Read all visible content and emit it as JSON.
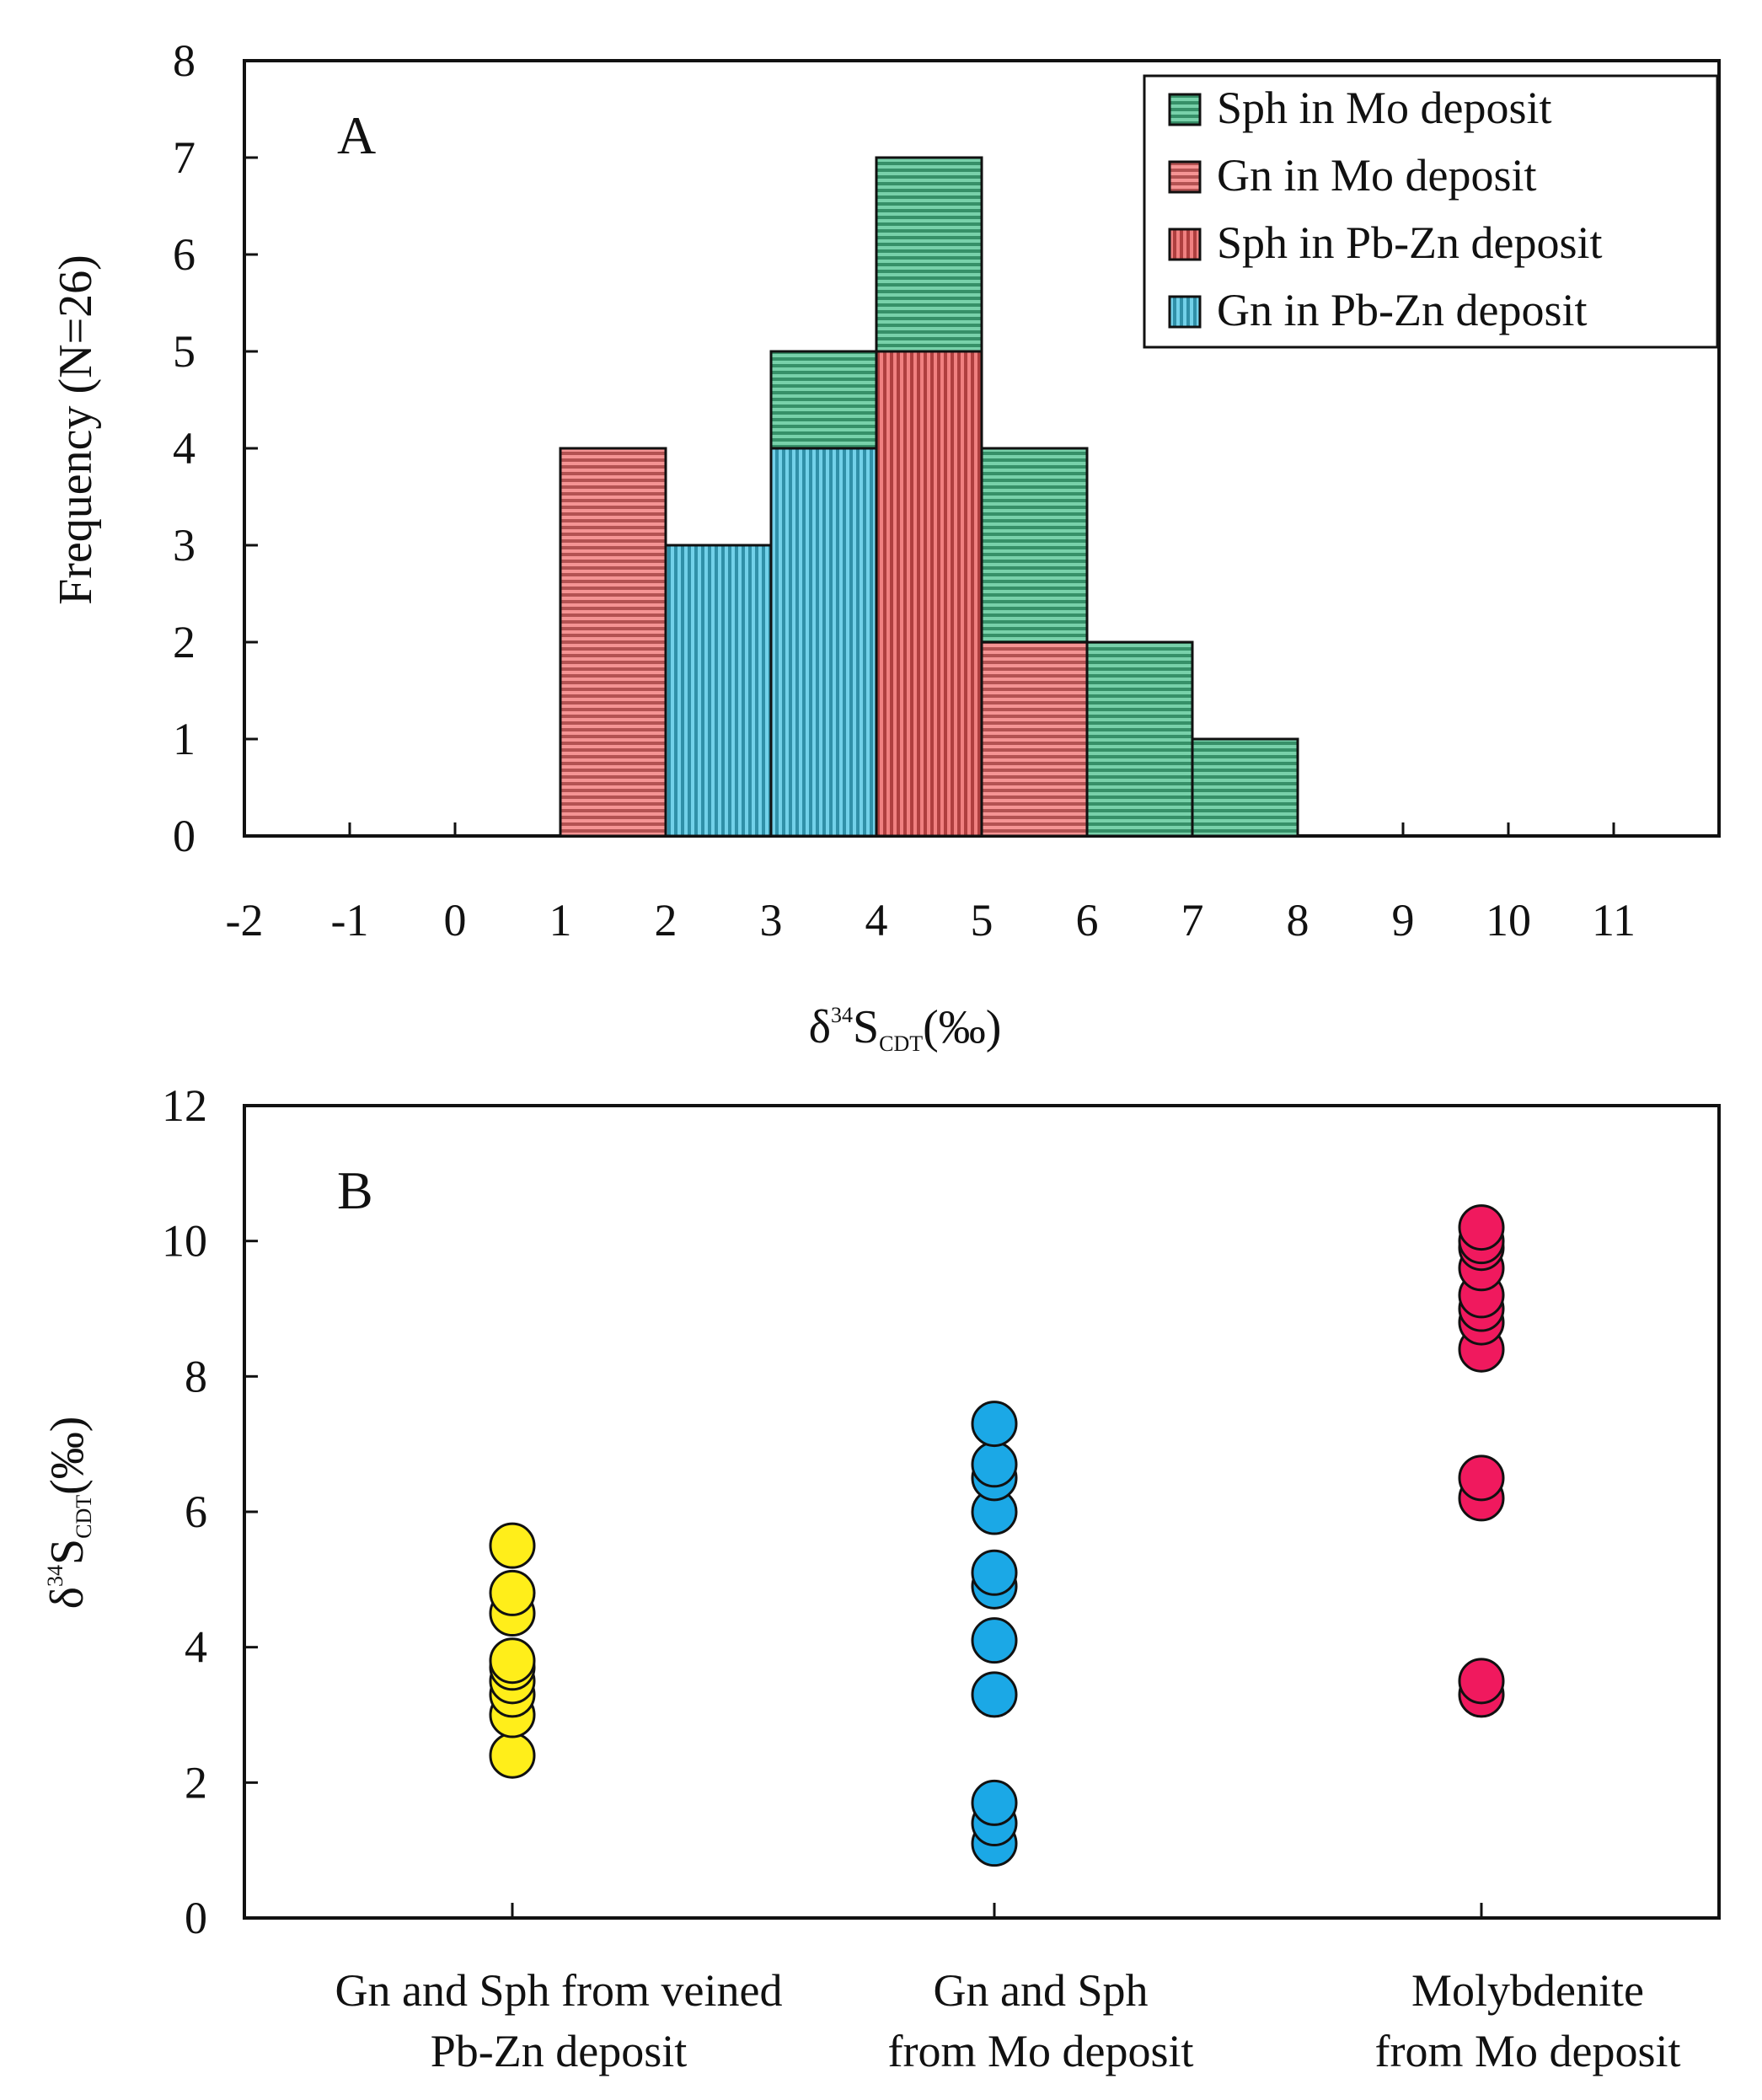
{
  "chart_data": [
    {
      "panel": "A",
      "type": "bar",
      "subtype": "stacked-histogram",
      "ylabel": "Frequency (N=26)",
      "xlabel": {
        "prefix": "δ",
        "sup": "34",
        "main": "S",
        "sub": "CDT",
        "suffix": "(‰)"
      },
      "xlim": [
        -2,
        12
      ],
      "ylim": [
        0,
        8
      ],
      "x_ticks": [
        "-2",
        "-1",
        "0",
        "1",
        "2",
        "3",
        "4",
        "5",
        "6",
        "7",
        "8",
        "9",
        "10",
        "11"
      ],
      "y_ticks": [
        "0",
        "1",
        "2",
        "3",
        "4",
        "5",
        "6",
        "7",
        "8"
      ],
      "legend_position": "top-right",
      "series": [
        {
          "name": "Sph in Mo deposit",
          "color": "#2fb87c",
          "pattern": "horizontal"
        },
        {
          "name": "Gn in Mo deposit",
          "color": "#ef5a5a",
          "pattern": "horizontal"
        },
        {
          "name": "Sph in Pb-Zn deposit",
          "color": "#e83c3c",
          "pattern": "vertical"
        },
        {
          "name": "Gn in Pb-Zn deposit",
          "color": "#26b8dd",
          "pattern": "vertical"
        }
      ],
      "bins": [
        {
          "x0": 1,
          "x1": 2,
          "stack": [
            {
              "series": "Gn in Mo deposit",
              "count": 4
            }
          ]
        },
        {
          "x0": 2,
          "x1": 3,
          "stack": [
            {
              "series": "Gn in Pb-Zn deposit",
              "count": 3
            }
          ]
        },
        {
          "x0": 3,
          "x1": 4,
          "stack": [
            {
              "series": "Gn in Pb-Zn deposit",
              "count": 4
            },
            {
              "series": "Sph in Mo deposit",
              "count": 1
            }
          ]
        },
        {
          "x0": 4,
          "x1": 5,
          "stack": [
            {
              "series": "Sph in Pb-Zn deposit",
              "count": 5
            },
            {
              "series": "Sph in Mo deposit",
              "count": 2
            }
          ]
        },
        {
          "x0": 5,
          "x1": 6,
          "stack": [
            {
              "series": "Gn in Mo deposit",
              "count": 2
            },
            {
              "series": "Sph in Mo deposit",
              "count": 2
            }
          ]
        },
        {
          "x0": 6,
          "x1": 7,
          "stack": [
            {
              "series": "Sph in Mo deposit",
              "count": 2
            }
          ]
        },
        {
          "x0": 7,
          "x1": 8,
          "stack": [
            {
              "series": "Sph in Mo deposit",
              "count": 1
            }
          ]
        }
      ]
    },
    {
      "panel": "B",
      "type": "scatter",
      "ylabel": {
        "prefix": "δ",
        "sup": "34",
        "main": "S",
        "sub": "CDT",
        "suffix": "(‰)"
      },
      "ylim": [
        0,
        12
      ],
      "y_ticks": [
        "0",
        "2",
        "4",
        "6",
        "8",
        "10",
        "12"
      ],
      "categories": [
        {
          "label": [
            "Gn and Sph from veined",
            "Pb-Zn deposit"
          ],
          "color": "#ffee1a",
          "values": [
            2.4,
            3.0,
            3.3,
            3.5,
            3.7,
            3.8,
            4.5,
            4.8,
            5.5
          ]
        },
        {
          "label": [
            "Gn and Sph",
            "from Mo deposit"
          ],
          "color": "#1ba8e6",
          "values": [
            1.1,
            1.4,
            1.7,
            3.3,
            4.1,
            4.9,
            5.1,
            6.0,
            6.5,
            6.7,
            7.3
          ]
        },
        {
          "label": [
            "Molybdenite",
            "from Mo deposit"
          ],
          "color": "#f0195e",
          "values": [
            3.3,
            3.5,
            6.2,
            6.5,
            8.4,
            8.8,
            9.0,
            9.2,
            9.6,
            9.9,
            10.0,
            10.2
          ]
        }
      ]
    }
  ]
}
